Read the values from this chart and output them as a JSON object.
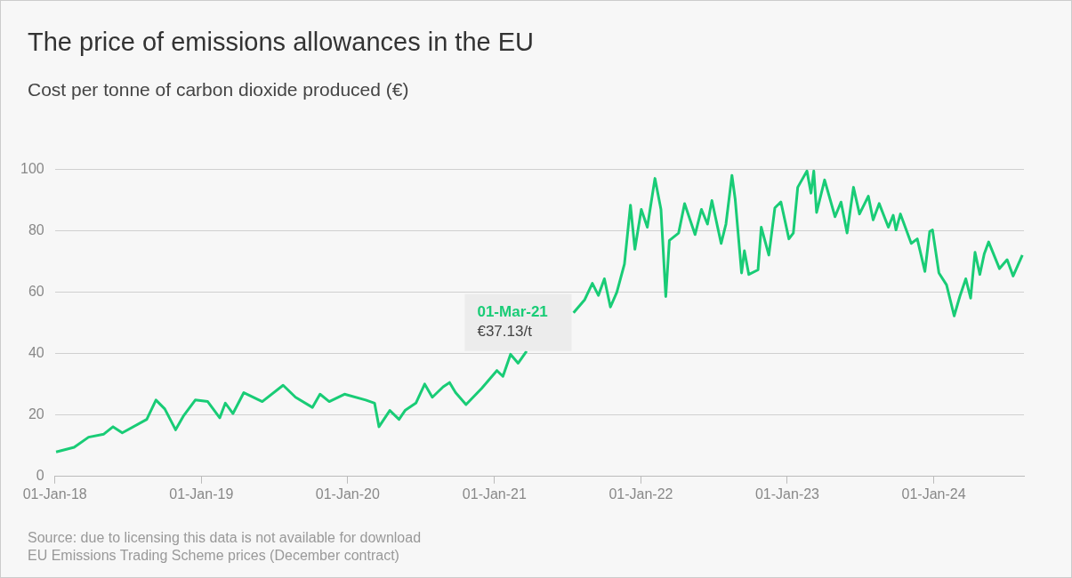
{
  "chart_data": {
    "type": "line",
    "title": "The price of emissions allowances in the EU",
    "subtitle": "Cost per tonne of carbon dioxide produced (€)",
    "x": [
      "2018-01-04",
      "2018-02-18",
      "2018-03-26",
      "2018-05-03",
      "2018-05-26",
      "2018-06-18",
      "2018-08-18",
      "2018-09-10",
      "2018-10-02",
      "2018-10-29",
      "2018-11-17",
      "2018-12-17",
      "2019-01-17",
      "2019-02-16",
      "2019-03-02",
      "2019-03-21",
      "2019-04-17",
      "2019-06-02",
      "2019-07-24",
      "2019-08-24",
      "2019-10-05",
      "2019-10-24",
      "2019-11-16",
      "2019-12-24",
      "2020-02-15",
      "2020-03-08",
      "2020-03-19",
      "2020-04-15",
      "2020-05-08",
      "2020-05-23",
      "2020-06-19",
      "2020-07-11",
      "2020-07-30",
      "2020-08-26",
      "2020-09-11",
      "2020-09-26",
      "2020-10-22",
      "2020-11-30",
      "2021-01-07",
      "2021-01-22",
      "2021-02-10",
      "2021-03-01",
      "2021-03-22",
      "2021-04-20",
      "2021-07-17",
      "2021-08-14",
      "2021-09-02",
      "2021-09-17",
      "2021-10-02",
      "2021-10-17",
      "2021-11-02",
      "2021-11-21",
      "2021-12-06",
      "2021-12-17",
      "2022-01-02",
      "2022-01-17",
      "2022-02-05",
      "2022-02-20",
      "2022-03-04",
      "2022-03-13",
      "2022-04-05",
      "2022-04-20",
      "2022-05-16",
      "2022-06-01",
      "2022-06-16",
      "2022-06-27",
      "2022-07-20",
      "2022-08-01",
      "2022-08-16",
      "2022-08-24",
      "2022-09-09",
      "2022-09-16",
      "2022-09-27",
      "2022-10-20",
      "2022-10-28",
      "2022-11-16",
      "2022-12-01",
      "2022-12-16",
      "2023-01-05",
      "2023-01-16",
      "2023-01-27",
      "2023-02-19",
      "2023-03-01",
      "2023-03-08",
      "2023-03-15",
      "2023-04-04",
      "2023-04-30",
      "2023-05-15",
      "2023-05-30",
      "2023-06-15",
      "2023-06-30",
      "2023-07-22",
      "2023-08-03",
      "2023-08-18",
      "2023-09-10",
      "2023-09-22",
      "2023-09-29",
      "2023-10-10",
      "2023-11-06",
      "2023-11-21",
      "2023-12-10",
      "2023-12-22",
      "2023-12-29",
      "2024-01-14",
      "2024-02-02",
      "2024-02-21",
      "2024-03-06",
      "2024-03-21",
      "2024-04-02",
      "2024-04-13",
      "2024-04-25",
      "2024-05-06",
      "2024-05-17",
      "2024-06-13",
      "2024-07-02",
      "2024-07-17",
      "2024-08-09"
    ],
    "series": [
      {
        "color": "#19cc76",
        "values": [
          8.0,
          9.5,
          12.8,
          13.8,
          16.2,
          14.2,
          18.6,
          24.9,
          22.0,
          15.2,
          19.6,
          24.9,
          24.4,
          19.1,
          23.9,
          20.5,
          27.3,
          24.4,
          29.7,
          25.8,
          22.5,
          26.8,
          24.4,
          26.8,
          24.9,
          23.9,
          16.2,
          21.5,
          18.6,
          21.5,
          23.9,
          30.1,
          25.8,
          29.2,
          30.6,
          27.3,
          23.4,
          28.7,
          34.5,
          32.6,
          39.8,
          36.9,
          40.8,
          null,
          53.3,
          57.6,
          62.9,
          59.0,
          64.4,
          55.2,
          60.0,
          69.2,
          88.4,
          74.0,
          87.0,
          81.2,
          97.1,
          87.0,
          58.6,
          76.9,
          79.3,
          88.9,
          78.8,
          87.0,
          82.2,
          89.9,
          75.9,
          82.2,
          98.1,
          90.4,
          66.3,
          73.5,
          65.8,
          67.3,
          81.2,
          72.1,
          87.5,
          89.4,
          77.4,
          79.3,
          94.2,
          99.5,
          92.3,
          99.5,
          86.0,
          96.6,
          84.6,
          89.4,
          79.3,
          94.2,
          85.5,
          91.3,
          83.6,
          88.9,
          81.2,
          85.1,
          80.3,
          85.5,
          75.9,
          77.4,
          66.8,
          79.8,
          80.3,
          66.3,
          62.4,
          52.3,
          58.6,
          64.4,
          58.1,
          73.0,
          65.8,
          72.5,
          76.4,
          67.7,
          70.6,
          65.3,
          72.1
        ]
      }
    ],
    "xlim": [
      "2018-01-01",
      "2024-08-13"
    ],
    "xticks": [
      {
        "value": "2018-01-01",
        "label": "01-Jan-18"
      },
      {
        "value": "2019-01-01",
        "label": "01-Jan-19"
      },
      {
        "value": "2020-01-01",
        "label": "01-Jan-20"
      },
      {
        "value": "2021-01-01",
        "label": "01-Jan-21"
      },
      {
        "value": "2022-01-01",
        "label": "01-Jan-22"
      },
      {
        "value": "2023-01-01",
        "label": "01-Jan-23"
      },
      {
        "value": "2024-01-01",
        "label": "01-Jan-24"
      }
    ],
    "ylim": [
      0,
      100
    ],
    "yticks": [
      0,
      20,
      40,
      60,
      80,
      100
    ],
    "grid": "y",
    "legend": false,
    "marker": "none",
    "line_style": "solid",
    "annotations": [
      {
        "text": "01-Mar-21\n€37.13/t",
        "x": "2021-03-01",
        "y": 37.13
      },
      "Source: due to licensing this data is not available for download",
      "EU Emissions Trading Scheme prices (December contract)"
    ]
  }
}
